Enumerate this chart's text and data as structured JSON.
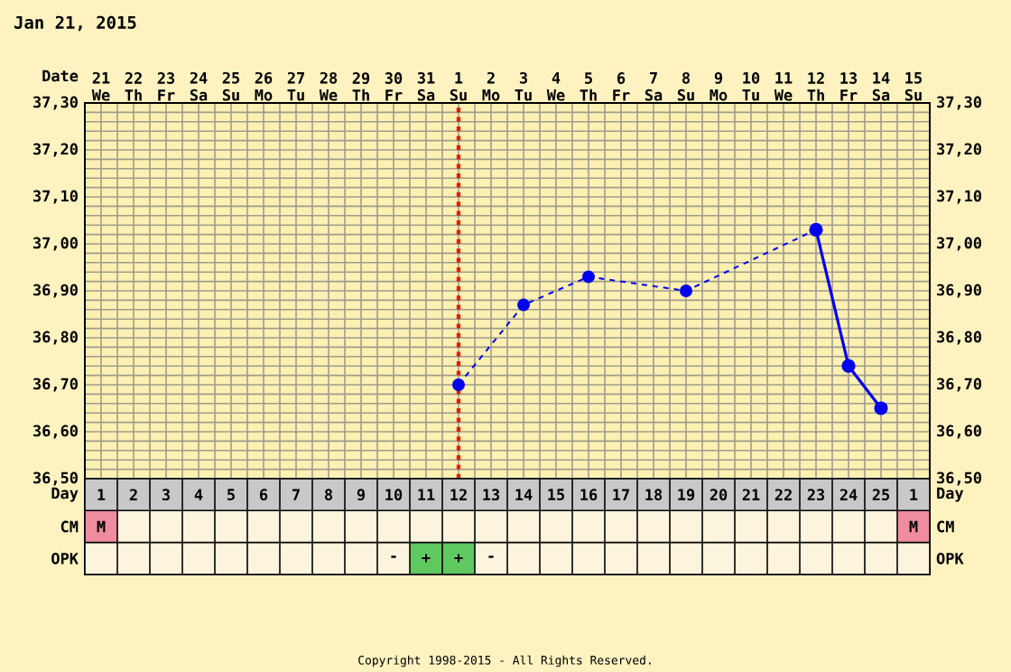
{
  "chart_data": [
    {
      "type": "line",
      "title": "Jan 21, 2015",
      "xlabel": "Date",
      "annotations": [
        "Copyright 1998-2015 - All Rights Reserved."
      ],
      "categories": [
        "21 We",
        "22 Th",
        "23 Fr",
        "24 Sa",
        "25 Su",
        "26 Mo",
        "27 Tu",
        "28 We",
        "29 Th",
        "30 Fr",
        "31 Sa",
        "1 Su",
        "2 Mo",
        "3 Tu",
        "4 We",
        "5 Th",
        "6 Fr",
        "7 Sa",
        "8 Su",
        "9 Mo",
        "10 Tu",
        "11 We",
        "12 Th",
        "13 Fr",
        "14 Sa",
        "15 Su"
      ],
      "series": [
        {
          "color": "#0000ee",
          "line_style": "dashed",
          "values": [
            null,
            null,
            null,
            null,
            null,
            null,
            null,
            null,
            null,
            null,
            null,
            36.7,
            null,
            36.87,
            null,
            36.93,
            null,
            null,
            36.9,
            null,
            null,
            null,
            37.03,
            null,
            null,
            null
          ]
        },
        {
          "color": "#0000ee",
          "line_style": "solid",
          "values": [
            null,
            null,
            null,
            null,
            null,
            null,
            null,
            null,
            null,
            null,
            null,
            null,
            null,
            null,
            null,
            null,
            null,
            null,
            null,
            null,
            null,
            null,
            37.03,
            36.74,
            36.65,
            null
          ]
        }
      ],
      "ylim": [
        36.5,
        37.3
      ],
      "yticks": [
        {
          "value": 36.5,
          "label": "36,50"
        },
        {
          "value": 36.6,
          "label": "36,60"
        },
        {
          "value": 36.7,
          "label": "36,70"
        },
        {
          "value": 36.8,
          "label": "36,80"
        },
        {
          "value": 36.9,
          "label": "36,90"
        },
        {
          "value": 37.0,
          "label": "37,00"
        },
        {
          "value": 37.1,
          "label": "37,10"
        },
        {
          "value": 37.2,
          "label": "37,20"
        },
        {
          "value": 37.3,
          "label": "37,30"
        }
      ],
      "y2lim": [
        36.5,
        37.3
      ],
      "y2ticks": [
        {
          "value": 36.5,
          "label": "36,50"
        },
        {
          "value": 36.6,
          "label": "36,60"
        },
        {
          "value": 36.7,
          "label": "36,70"
        },
        {
          "value": 36.8,
          "label": "36,80"
        },
        {
          "value": 36.9,
          "label": "36,90"
        },
        {
          "value": 37.0,
          "label": "37,00"
        },
        {
          "value": 37.1,
          "label": "37,10"
        },
        {
          "value": 37.2,
          "label": "37,20"
        },
        {
          "value": 37.3,
          "label": "37,30"
        }
      ],
      "grid": true,
      "marker": "circle",
      "ref_lines": [
        {
          "axis": "x",
          "value": "1 Su",
          "color": "#dd2200",
          "line_style": "dotted"
        }
      ]
    },
    {
      "type": "heatmap",
      "xlabel": "Day",
      "categories": [
        "1",
        "2",
        "3",
        "4",
        "5",
        "6",
        "7",
        "8",
        "9",
        "10",
        "11",
        "12",
        "13",
        "14",
        "15",
        "16",
        "17",
        "18",
        "19",
        "20",
        "21",
        "22",
        "23",
        "24",
        "25",
        "1"
      ],
      "y_categories": [
        "CM",
        "OPK"
      ],
      "y2_categories": [
        "CM",
        "OPK"
      ],
      "cells": [
        [
          null,
          null,
          null,
          null,
          null,
          null,
          null,
          null,
          null,
          null,
          null,
          null,
          null,
          null,
          null,
          null,
          null,
          null,
          null,
          null,
          null,
          null,
          null,
          null,
          null,
          null
        ],
        [
          null,
          null,
          null,
          null,
          null,
          null,
          null,
          null,
          null,
          null,
          null,
          null,
          null,
          null,
          null,
          null,
          null,
          null,
          null,
          null,
          null,
          null,
          null,
          null,
          null,
          null
        ]
      ],
      "colors": [
        [
          "#f08ca0",
          null,
          null,
          null,
          null,
          null,
          null,
          null,
          null,
          null,
          null,
          null,
          null,
          null,
          null,
          null,
          null,
          null,
          null,
          null,
          null,
          null,
          null,
          null,
          null,
          "#f08ca0"
        ],
        [
          null,
          null,
          null,
          null,
          null,
          null,
          null,
          null,
          null,
          null,
          "#60c860",
          "#60c860",
          null,
          null,
          null,
          null,
          null,
          null,
          null,
          null,
          null,
          null,
          null,
          null,
          null,
          null
        ]
      ],
      "cell_labels": [
        [
          "M",
          null,
          null,
          null,
          null,
          null,
          null,
          null,
          null,
          null,
          null,
          null,
          null,
          null,
          null,
          null,
          null,
          null,
          null,
          null,
          null,
          null,
          null,
          null,
          null,
          "M"
        ],
        [
          null,
          null,
          null,
          null,
          null,
          null,
          null,
          null,
          null,
          "-",
          "+",
          "+",
          "-",
          null,
          null,
          null,
          null,
          null,
          null,
          null,
          null,
          null,
          null,
          null,
          null,
          null
        ]
      ]
    }
  ]
}
